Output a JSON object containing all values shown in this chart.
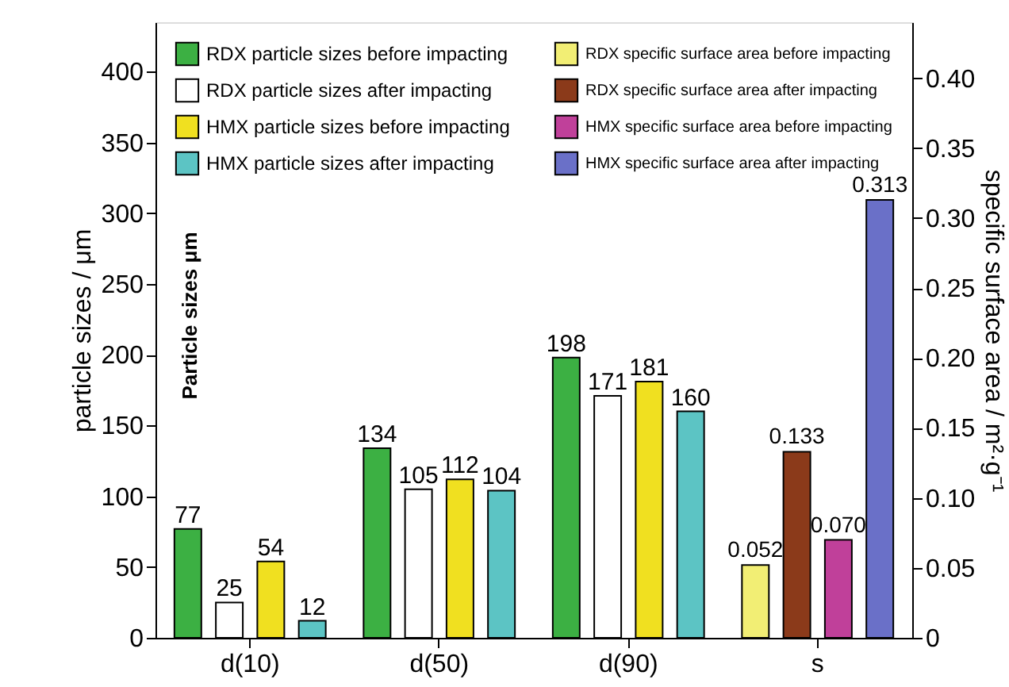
{
  "chart_data": {
    "type": "bar",
    "categories": [
      "d(10)",
      "d(50)",
      "d(90)",
      "s"
    ],
    "ylabel": "particle sizes / μm",
    "y2label": "specific surface area / m²·g⁻¹",
    "ylim": [
      0,
      435
    ],
    "yticks": [
      0,
      50,
      100,
      150,
      200,
      250,
      300,
      350,
      400
    ],
    "y2lim": [
      0,
      0.44
    ],
    "y2ticks": [
      {
        "value": 0,
        "label": "0"
      },
      {
        "value": 0.05,
        "label": "0.05"
      },
      {
        "value": 0.1,
        "label": "0.10"
      },
      {
        "value": 0.15,
        "label": "0.15"
      },
      {
        "value": 0.2,
        "label": "0.20"
      },
      {
        "value": 0.25,
        "label": "0.25"
      },
      {
        "value": 0.3,
        "label": "0.30"
      },
      {
        "value": 0.35,
        "label": "0.35"
      },
      {
        "value": 0.4,
        "label": "0.40"
      }
    ],
    "annotations": [
      "Particle sizes μm"
    ],
    "legend": "top",
    "grid": false,
    "series": [
      {
        "name": "RDX particle sizes before impacting",
        "color": "#3cb043",
        "values": [
          77,
          134,
          198,
          null
        ],
        "value_labels": [
          "77",
          "134",
          "198",
          null
        ]
      },
      {
        "name": "RDX particle sizes after impacting",
        "color": "#ffffff",
        "values": [
          25,
          105,
          171,
          null
        ],
        "value_labels": [
          "25",
          "105",
          "171",
          null
        ]
      },
      {
        "name": "HMX particle sizes before impacting",
        "color": "#f0e020",
        "values": [
          54,
          112,
          181,
          null
        ],
        "value_labels": [
          "54",
          "112",
          "181",
          null
        ]
      },
      {
        "name": "HMX particle sizes after impacting",
        "color": "#5cc4c4",
        "values": [
          12,
          104,
          160,
          null
        ],
        "value_labels": [
          "12",
          "104",
          "160",
          null
        ]
      },
      {
        "name": "RDX specific surface area before impacting",
        "color": "#f2ee74",
        "axis": "y2",
        "values": [
          null,
          null,
          null,
          0.052
        ],
        "value_labels": [
          null,
          null,
          null,
          "0.052"
        ]
      },
      {
        "name": "RDX specific surface area after impacting",
        "color": "#8b3a1a",
        "axis": "y2",
        "values": [
          null,
          null,
          null,
          0.133
        ],
        "value_labels": [
          null,
          null,
          null,
          "0.133"
        ]
      },
      {
        "name": "HMX specific surface area before impacting",
        "color": "#c0409a",
        "axis": "y2",
        "values": [
          null,
          null,
          null,
          0.07
        ],
        "value_labels": [
          null,
          null,
          null,
          "0.070"
        ]
      },
      {
        "name": "HMX specific surface area after impacting",
        "color": "#6a70c8",
        "axis": "y2",
        "values": [
          null,
          null,
          null,
          0.313
        ],
        "value_labels": [
          null,
          null,
          null,
          "0.313"
        ]
      }
    ]
  }
}
